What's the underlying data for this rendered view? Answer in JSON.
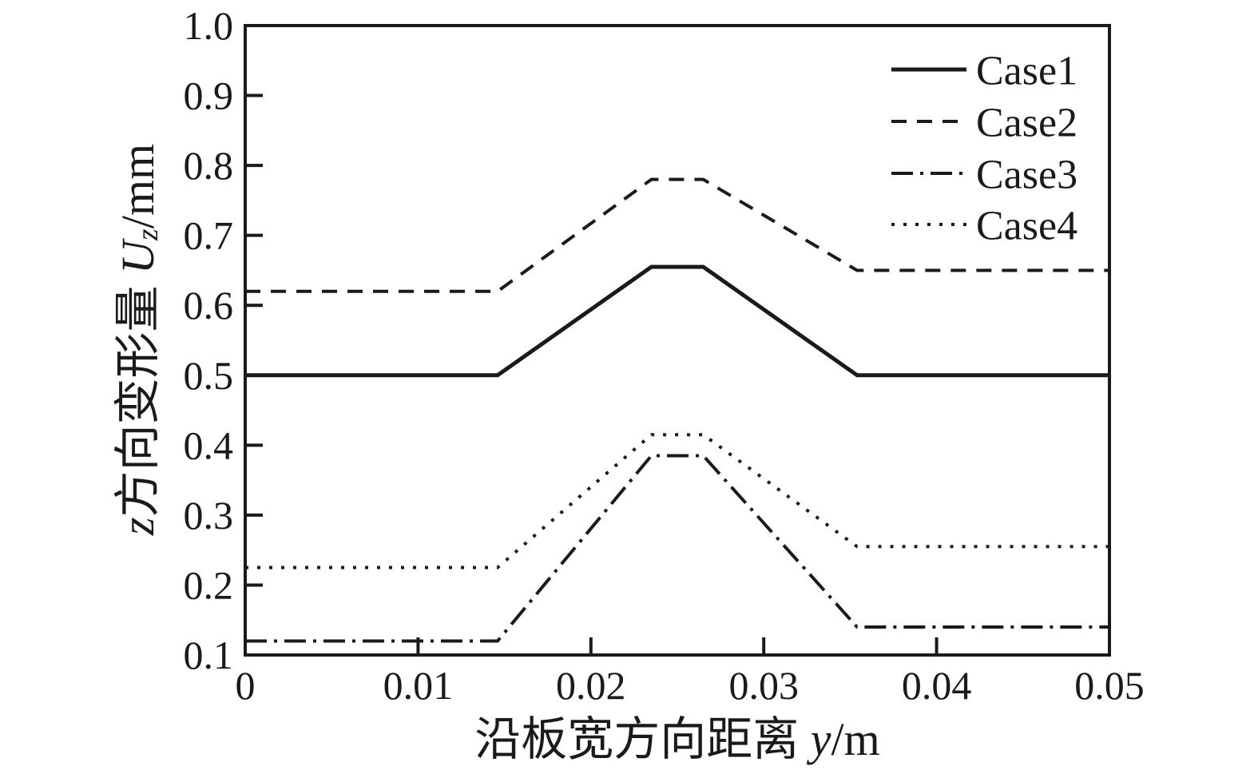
{
  "chart_data": {
    "type": "line",
    "title": "",
    "xlabel": "沿板宽方向距离 y/m",
    "ylabel": "z方向变形量 Uz/mm",
    "xlim": [
      0,
      0.05
    ],
    "ylim": [
      0.1,
      1.0
    ],
    "x_ticks": [
      0,
      0.01,
      0.02,
      0.03,
      0.04,
      0.05
    ],
    "x_tick_labels": [
      "0",
      "0.01",
      "0.02",
      "0.03",
      "0.04",
      "0.05"
    ],
    "y_ticks": [
      0.1,
      0.2,
      0.3,
      0.4,
      0.5,
      0.6,
      0.7,
      0.8,
      0.9,
      1.0
    ],
    "y_tick_labels": [
      "0.1",
      "0.2",
      "0.3",
      "0.4",
      "0.5",
      "0.6",
      "0.7",
      "0.8",
      "0.9",
      "1.0"
    ],
    "grid": false,
    "legend_position": "inside-top-right",
    "line_color": "#1a1a1a",
    "series": [
      {
        "name": "Case1",
        "style": "solid",
        "x": [
          0,
          0.0146,
          0.0235,
          0.0265,
          0.0354,
          0.05
        ],
        "y": [
          0.5,
          0.5,
          0.655,
          0.655,
          0.5,
          0.5
        ]
      },
      {
        "name": "Case2",
        "style": "dashed",
        "x": [
          0,
          0.0146,
          0.0235,
          0.0265,
          0.0354,
          0.05
        ],
        "y": [
          0.62,
          0.62,
          0.78,
          0.78,
          0.65,
          0.65
        ]
      },
      {
        "name": "Case3",
        "style": "dashdot",
        "x": [
          0,
          0.0146,
          0.0235,
          0.0265,
          0.0354,
          0.05
        ],
        "y": [
          0.12,
          0.12,
          0.385,
          0.385,
          0.14,
          0.14
        ]
      },
      {
        "name": "Case4",
        "style": "dotted",
        "x": [
          0,
          0.0146,
          0.0235,
          0.0265,
          0.0354,
          0.05
        ],
        "y": [
          0.225,
          0.225,
          0.415,
          0.415,
          0.255,
          0.255
        ]
      }
    ]
  },
  "labels": {
    "ylabel_var": "z",
    "ylabel_mid": "方向变形量 ",
    "ylabel_sym": "U",
    "ylabel_sub": "z",
    "ylabel_unit": "/mm",
    "xlabel_text": "沿板宽方向距离 ",
    "xlabel_var": "y",
    "xlabel_unit": "/m"
  }
}
